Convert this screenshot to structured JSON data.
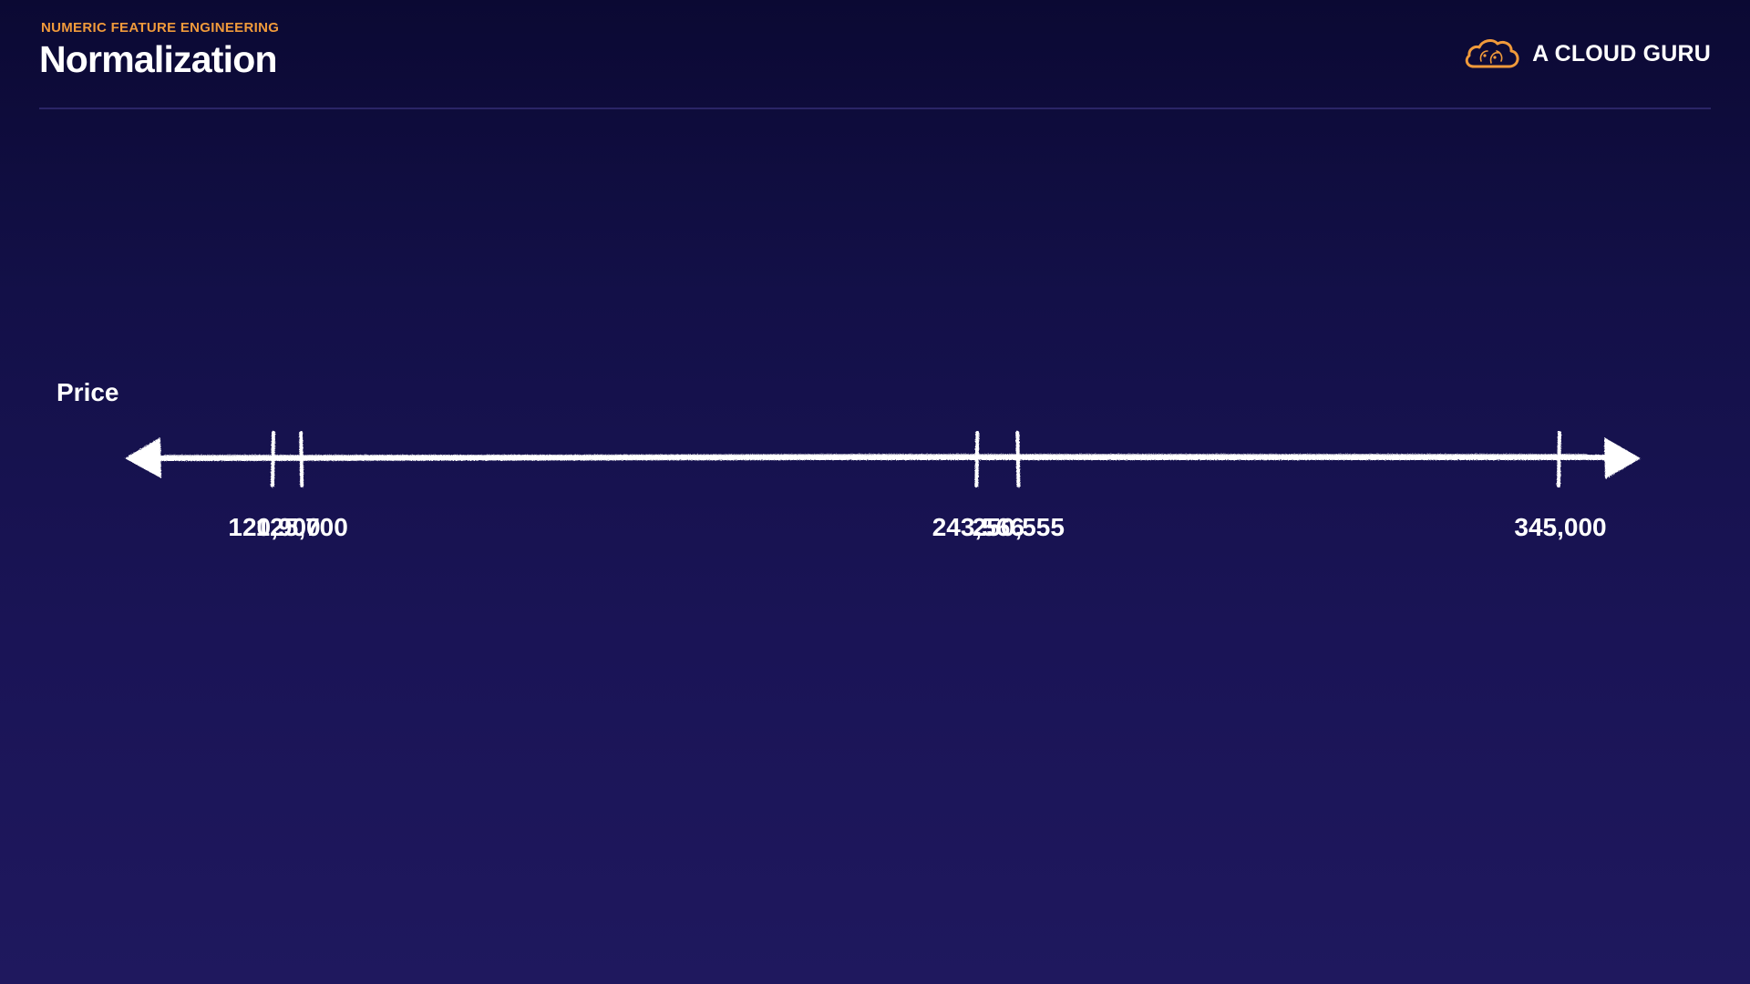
{
  "header": {
    "eyebrow": "NUMERIC FEATURE ENGINEERING",
    "title": "Normalization"
  },
  "brand": {
    "name": "A CLOUD GURU",
    "icon": "cloud-logo-icon",
    "accent_color": "#f09a3b"
  },
  "number_line": {
    "label": "Price",
    "ticks": [
      {
        "value": 120900,
        "text": "120,900"
      },
      {
        "value": 125700,
        "text": "125,700"
      },
      {
        "value": 243566,
        "text": "243,566"
      },
      {
        "value": 250555,
        "text": "250,555"
      },
      {
        "value": 345000,
        "text": "345,000"
      }
    ]
  }
}
